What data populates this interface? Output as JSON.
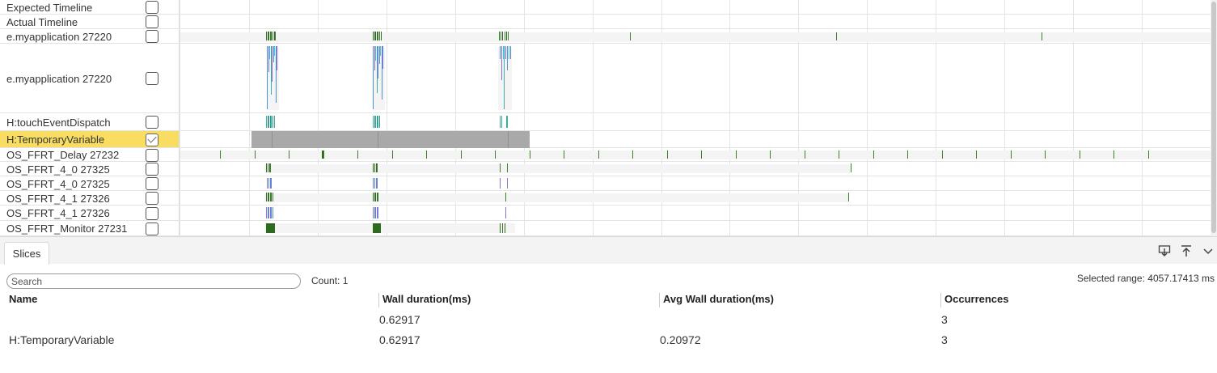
{
  "trace": {
    "rows": [
      {
        "label": "Expected Timeline",
        "checked": false
      },
      {
        "label": "Actual Timeline",
        "checked": false
      },
      {
        "label": "e.myapplication 27220",
        "checked": false
      },
      {
        "label": "e.myapplication 27220",
        "checked": false
      },
      {
        "label": "H:touchEventDispatch",
        "checked": false
      },
      {
        "label": "H:TemporaryVariable",
        "checked": true,
        "selected": true
      },
      {
        "label": "OS_FFRT_Delay 27232",
        "checked": false
      },
      {
        "label": "OS_FFRT_4_0 27325",
        "checked": false
      },
      {
        "label": "OS_FFRT_4_0 27325",
        "checked": false
      },
      {
        "label": "OS_FFRT_4_1 27326",
        "checked": false
      },
      {
        "label": "OS_FFRT_4_1 27326",
        "checked": false
      },
      {
        "label": "OS_FFRT_Monitor 27231",
        "checked": false
      }
    ],
    "colors": {
      "slice_green": "#3d7d2c",
      "slice_dark_green": "#2f6a1f",
      "slice_teal": "#3aaea0",
      "slice_blue": "#4a8fe0",
      "slice_cyan": "#4cc3e8",
      "slice_purple": "#8a6fd8",
      "selection_fill": "#a9a9a9",
      "highlight_row": "#f8dd62"
    }
  },
  "panel": {
    "tab_label": "Slices",
    "icons": [
      "download-icon",
      "pin-top-icon",
      "chevron-down-icon"
    ],
    "search_placeholder": "Search",
    "count_text": "Count: 1",
    "selected_range_text": "Selected range: 4057.17413 ms",
    "columns": [
      "Name",
      "Wall duration(ms)",
      "Avg Wall duration(ms)",
      "Occurrences"
    ],
    "summary_row": {
      "name": "",
      "wall": "0.62917",
      "avg": "",
      "occurrences": "3"
    },
    "rows": [
      {
        "name": "H:TemporaryVariable",
        "wall": "0.62917",
        "avg": "0.20972",
        "occurrences": "3"
      }
    ]
  }
}
